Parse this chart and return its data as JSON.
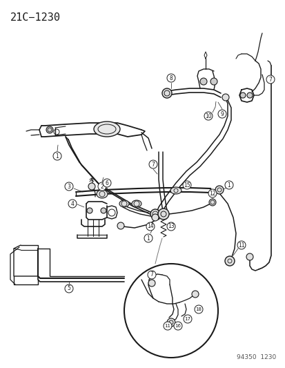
{
  "title": "21C−1230",
  "footer": "94350  1230",
  "bg_color": "#ffffff",
  "line_color": "#1a1a1a",
  "title_fontsize": 11,
  "footer_fontsize": 6.5,
  "fig_width": 4.14,
  "fig_height": 5.33,
  "dpi": 100
}
